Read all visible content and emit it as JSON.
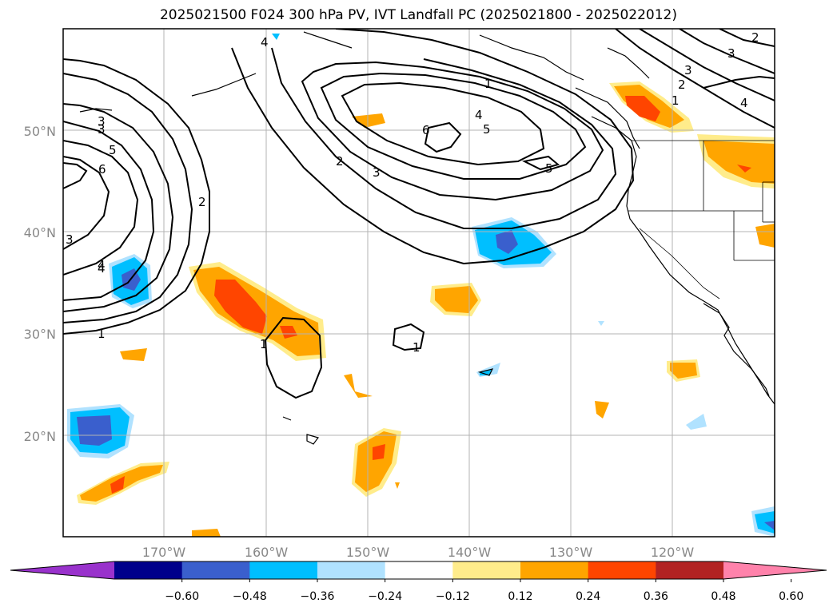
{
  "title": "2025021500 F024 300 hPa PV, IVT Landfall PC (2025021800 - 2025022012)",
  "map": {
    "projection": "PlateCarree",
    "lon_range": [
      -180,
      -110
    ],
    "lat_range": [
      10,
      60
    ],
    "lat_labels": [
      "20°N",
      "30°N",
      "40°N",
      "50°N"
    ],
    "lon_labels": [
      "170°W",
      "160°W",
      "150°W",
      "140°W",
      "130°W",
      "120°W"
    ],
    "gridlines": true
  },
  "colorbar": {
    "ticks": [
      "−0.60",
      "−0.48",
      "−0.36",
      "−0.24",
      "−0.12",
      "0.12",
      "0.24",
      "0.36",
      "0.48",
      "0.60"
    ],
    "colors": [
      "#9932cc",
      "#00008b",
      "#3a5fcd",
      "#00bfff",
      "#b0e2ff",
      "#ffffff",
      "#ffec8b",
      "#ffa500",
      "#ff4500",
      "#b22222",
      "#ff82ab"
    ],
    "extend": "both"
  },
  "pv_contour_labels": [
    "1",
    "2",
    "3",
    "4",
    "5",
    "6",
    "1",
    "2",
    "3",
    "4",
    "5",
    "6",
    "5",
    "3",
    "4",
    "5",
    "6",
    "2",
    "3",
    "4",
    "1",
    "3",
    "2",
    "3",
    "4",
    "4",
    "1",
    "1"
  ]
}
